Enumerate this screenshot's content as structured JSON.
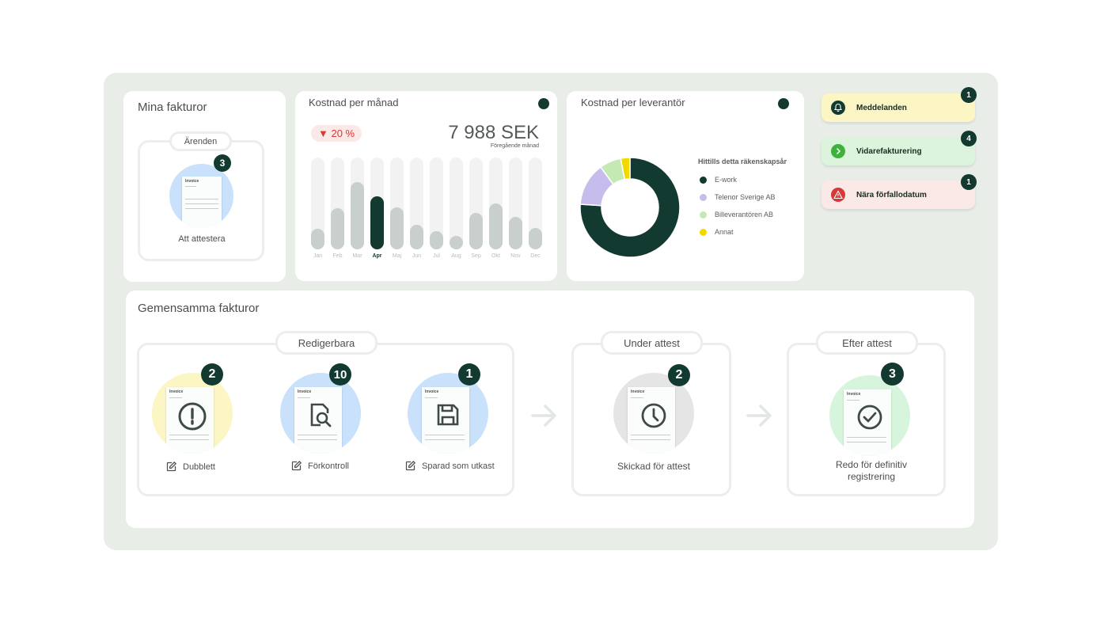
{
  "mina": {
    "title": "Mina fakturor",
    "section": "Ärenden",
    "count": "3",
    "label": "Att attestera"
  },
  "doc_title": "Invoice",
  "kostnad_manad": {
    "title": "Kostnad per månad",
    "change": "▼ 20 %",
    "amount": "7 988 SEK",
    "sub": "Föregående månad"
  },
  "chart_data": [
    {
      "type": "bar",
      "categories": [
        "Jan",
        "Feb",
        "Mar",
        "Apr",
        "Maj",
        "Jun",
        "Jul",
        "Aug",
        "Sep",
        "Okt",
        "Nov",
        "Dec"
      ],
      "values": [
        22,
        45,
        73,
        58,
        46,
        27,
        20,
        14,
        40,
        50,
        35,
        23
      ],
      "ylim": [
        0,
        100
      ],
      "highlight": "Apr",
      "colors": {
        "track": "#f1f2f1",
        "bar": "#c9cfcc",
        "highlight": "#123a30"
      }
    },
    {
      "type": "pie",
      "title": "Kostnad per leverantör",
      "legend_title": "Hittills detta räkenskapsår",
      "categories": [
        "E-work",
        "Telenor Sverige AB",
        "Billeverantören AB",
        "Annat"
      ],
      "values": [
        76,
        14,
        7,
        3
      ],
      "colors": [
        "#123a30",
        "#c7bdec",
        "#c5e9b2",
        "#f1d900"
      ]
    }
  ],
  "notifications": [
    {
      "label": "Meddelanden",
      "count": "1",
      "icon": "bell-icon",
      "bg": "#fbf6c3",
      "icon_bg": "#123a30"
    },
    {
      "label": "Vidarefakturering",
      "count": "4",
      "icon": "chevron-right-icon",
      "bg": "#dcf3dc",
      "icon_bg": "#3db33d"
    },
    {
      "label": "Nära förfallodatum",
      "count": "1",
      "icon": "warning-icon",
      "bg": "#fbe9e7",
      "icon_bg": "#d43a3a"
    }
  ],
  "gemensamma": {
    "title": "Gemensamma fakturor",
    "redigerbara": {
      "title": "Redigerbara",
      "items": [
        {
          "label": "Dubblett",
          "count": "2",
          "icon": "exclamation-icon",
          "bg": "#fbf6c3"
        },
        {
          "label": "Förkontroll",
          "count": "10",
          "icon": "search-document-icon",
          "bg": "#c9e1fa"
        },
        {
          "label": "Sparad som utkast",
          "count": "1",
          "icon": "save-icon",
          "bg": "#c9e1fa"
        }
      ]
    },
    "under_attest": {
      "title": "Under attest",
      "count": "2",
      "label": "Skickad för attest",
      "bg": "#e5e5e5"
    },
    "efter_attest": {
      "title": "Efter attest",
      "count": "3",
      "label": "Redo för definitiv registrering",
      "bg": "#d7f5dc"
    }
  }
}
